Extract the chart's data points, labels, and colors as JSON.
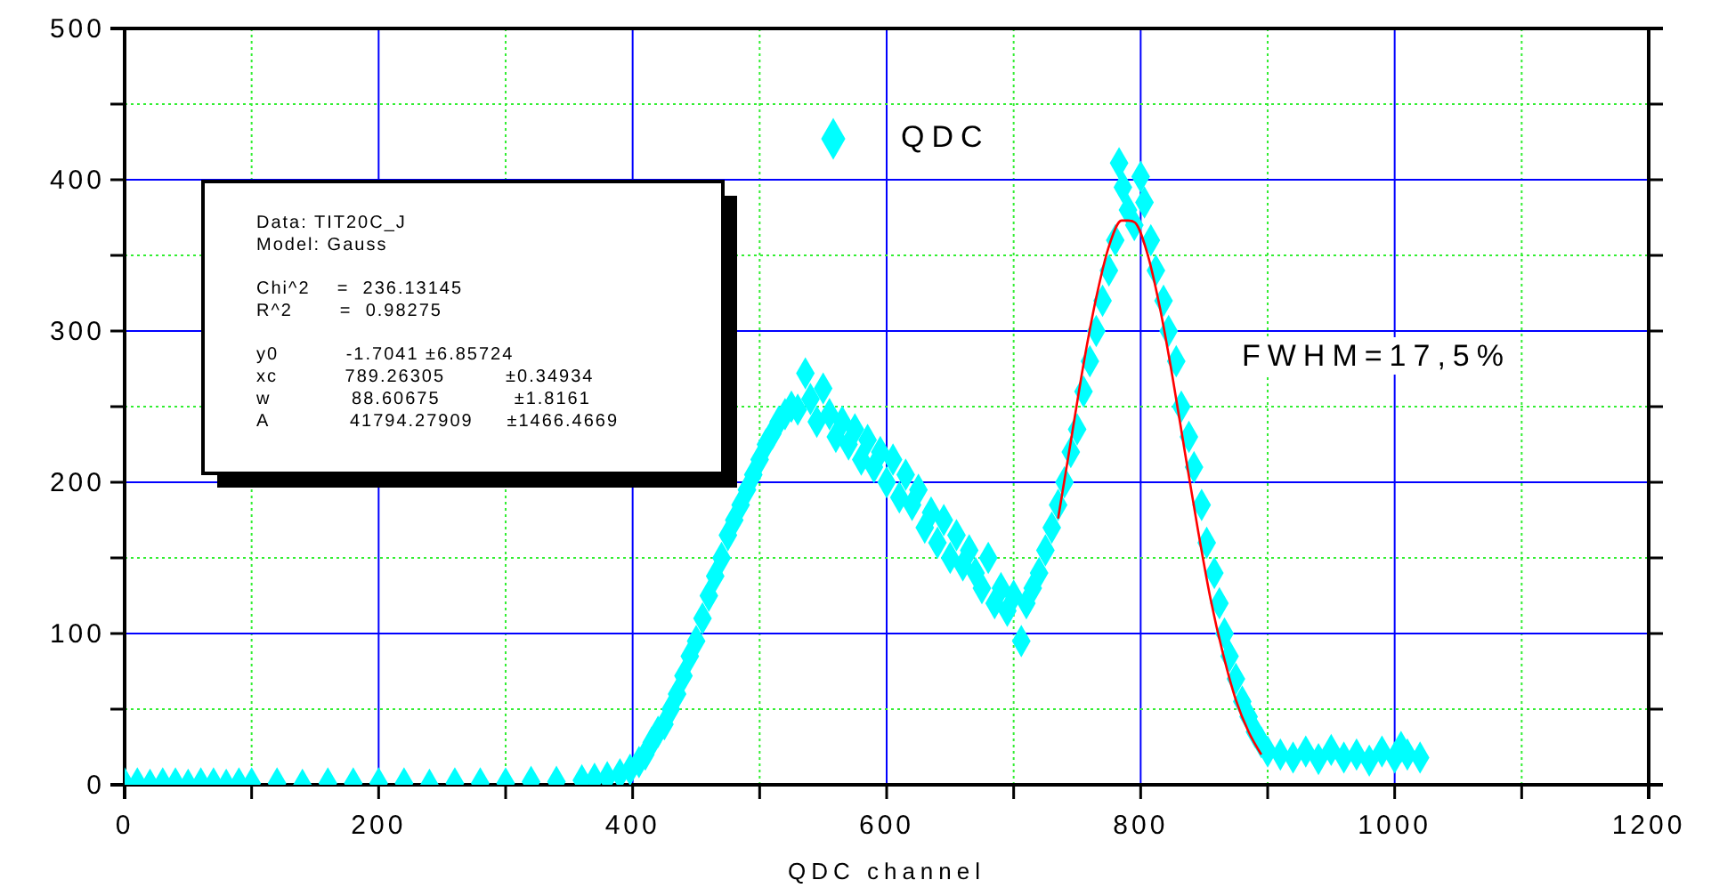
{
  "chart_data": {
    "type": "scatter",
    "xlabel": "QDC channel",
    "xlim": [
      0,
      1200
    ],
    "ylim": [
      0,
      500
    ],
    "xticks": [
      0,
      {
        "value": 100,
        "label": null
      },
      200,
      {
        "value": 300,
        "label": null
      },
      400,
      {
        "value": 500,
        "label": null
      },
      600,
      {
        "value": 700,
        "label": null
      },
      800,
      {
        "value": 900,
        "label": null
      },
      1000,
      {
        "value": 1100,
        "label": null
      },
      1200
    ],
    "yticks": [
      0,
      {
        "value": 50,
        "label": null
      },
      100,
      {
        "value": 150,
        "label": null
      },
      200,
      {
        "value": 250,
        "label": null
      },
      300,
      {
        "value": 350,
        "label": null
      },
      400,
      {
        "value": 450,
        "label": null
      },
      500
    ],
    "grid": true,
    "legend": "top",
    "marker": "diamond",
    "series": [
      {
        "name": "QDC",
        "color": "#00ffff",
        "x": [
          0,
          10,
          20,
          30,
          40,
          50,
          60,
          70,
          80,
          90,
          100,
          120,
          140,
          160,
          180,
          200,
          220,
          240,
          260,
          280,
          300,
          320,
          340,
          360,
          370,
          380,
          390,
          398,
          405,
          410,
          415,
          420,
          425,
          430,
          435,
          440,
          445,
          450,
          455,
          460,
          465,
          470,
          475,
          480,
          485,
          490,
          495,
          500,
          505,
          510,
          515,
          520,
          525,
          530,
          536,
          540,
          545,
          550,
          555,
          560,
          565,
          570,
          575,
          580,
          585,
          590,
          595,
          600,
          605,
          610,
          615,
          620,
          625,
          630,
          635,
          640,
          645,
          650,
          655,
          660,
          665,
          670,
          675,
          680,
          685,
          690,
          695,
          700,
          706,
          710,
          715,
          720,
          725,
          730,
          735,
          740,
          745,
          750,
          755,
          760,
          765,
          770,
          775,
          780,
          783,
          786,
          790,
          795,
          800,
          803,
          808,
          812,
          818,
          822,
          828,
          832,
          838,
          842,
          848,
          852,
          858,
          862,
          866,
          870,
          875,
          880,
          885,
          890,
          895,
          900,
          910,
          920,
          930,
          940,
          950,
          960,
          970,
          980,
          990,
          1000,
          1005,
          1010,
          1020
        ],
        "values": [
          1,
          1,
          0,
          1,
          1,
          0,
          1,
          1,
          0,
          1,
          1,
          1,
          0,
          1,
          1,
          1,
          1,
          0,
          1,
          1,
          1,
          2,
          2,
          3,
          4,
          5,
          7,
          10,
          15,
          20,
          28,
          35,
          40,
          50,
          60,
          72,
          85,
          95,
          110,
          125,
          138,
          150,
          165,
          175,
          185,
          195,
          205,
          215,
          225,
          232,
          240,
          245,
          250,
          248,
          272,
          255,
          240,
          262,
          245,
          230,
          240,
          225,
          235,
          215,
          228,
          210,
          220,
          200,
          215,
          190,
          205,
          185,
          195,
          170,
          180,
          160,
          175,
          150,
          165,
          145,
          155,
          140,
          130,
          150,
          120,
          130,
          115,
          125,
          95,
          120,
          130,
          140,
          155,
          170,
          185,
          200,
          220,
          235,
          260,
          280,
          300,
          320,
          340,
          360,
          411,
          395,
          380,
          370,
          402,
          385,
          360,
          340,
          320,
          300,
          280,
          250,
          230,
          210,
          185,
          160,
          140,
          120,
          100,
          85,
          70,
          55,
          45,
          35,
          28,
          22,
          20,
          18,
          22,
          17,
          23,
          18,
          20,
          16,
          22,
          18,
          25,
          20,
          18
        ]
      },
      {
        "color": "#ff0000",
        "type": "line",
        "line_style": "solid",
        "marker": "none",
        "x": [
          735,
          745,
          755,
          765,
          775,
          785,
          790,
          795,
          805,
          815,
          825,
          835,
          845,
          855,
          865,
          875,
          885,
          895
        ],
        "values": [
          176,
          227,
          278,
          322,
          356,
          373,
          373,
          372,
          352,
          316,
          270,
          219,
          169,
          123,
          86,
          56,
          35,
          20
        ]
      }
    ],
    "annotations": [
      "Data: TIT20C_J",
      "Model: Gauss",
      "Chi^2    =  236.13145",
      "R^2       =  0.98275",
      "y0          -1.7041 ±6.85724",
      "xc          789.26305         ±0.34934",
      "w            88.60675           ±1.8161",
      "A            41794.27909     ±1466.4669",
      "FWHM=17,5%"
    ]
  }
}
